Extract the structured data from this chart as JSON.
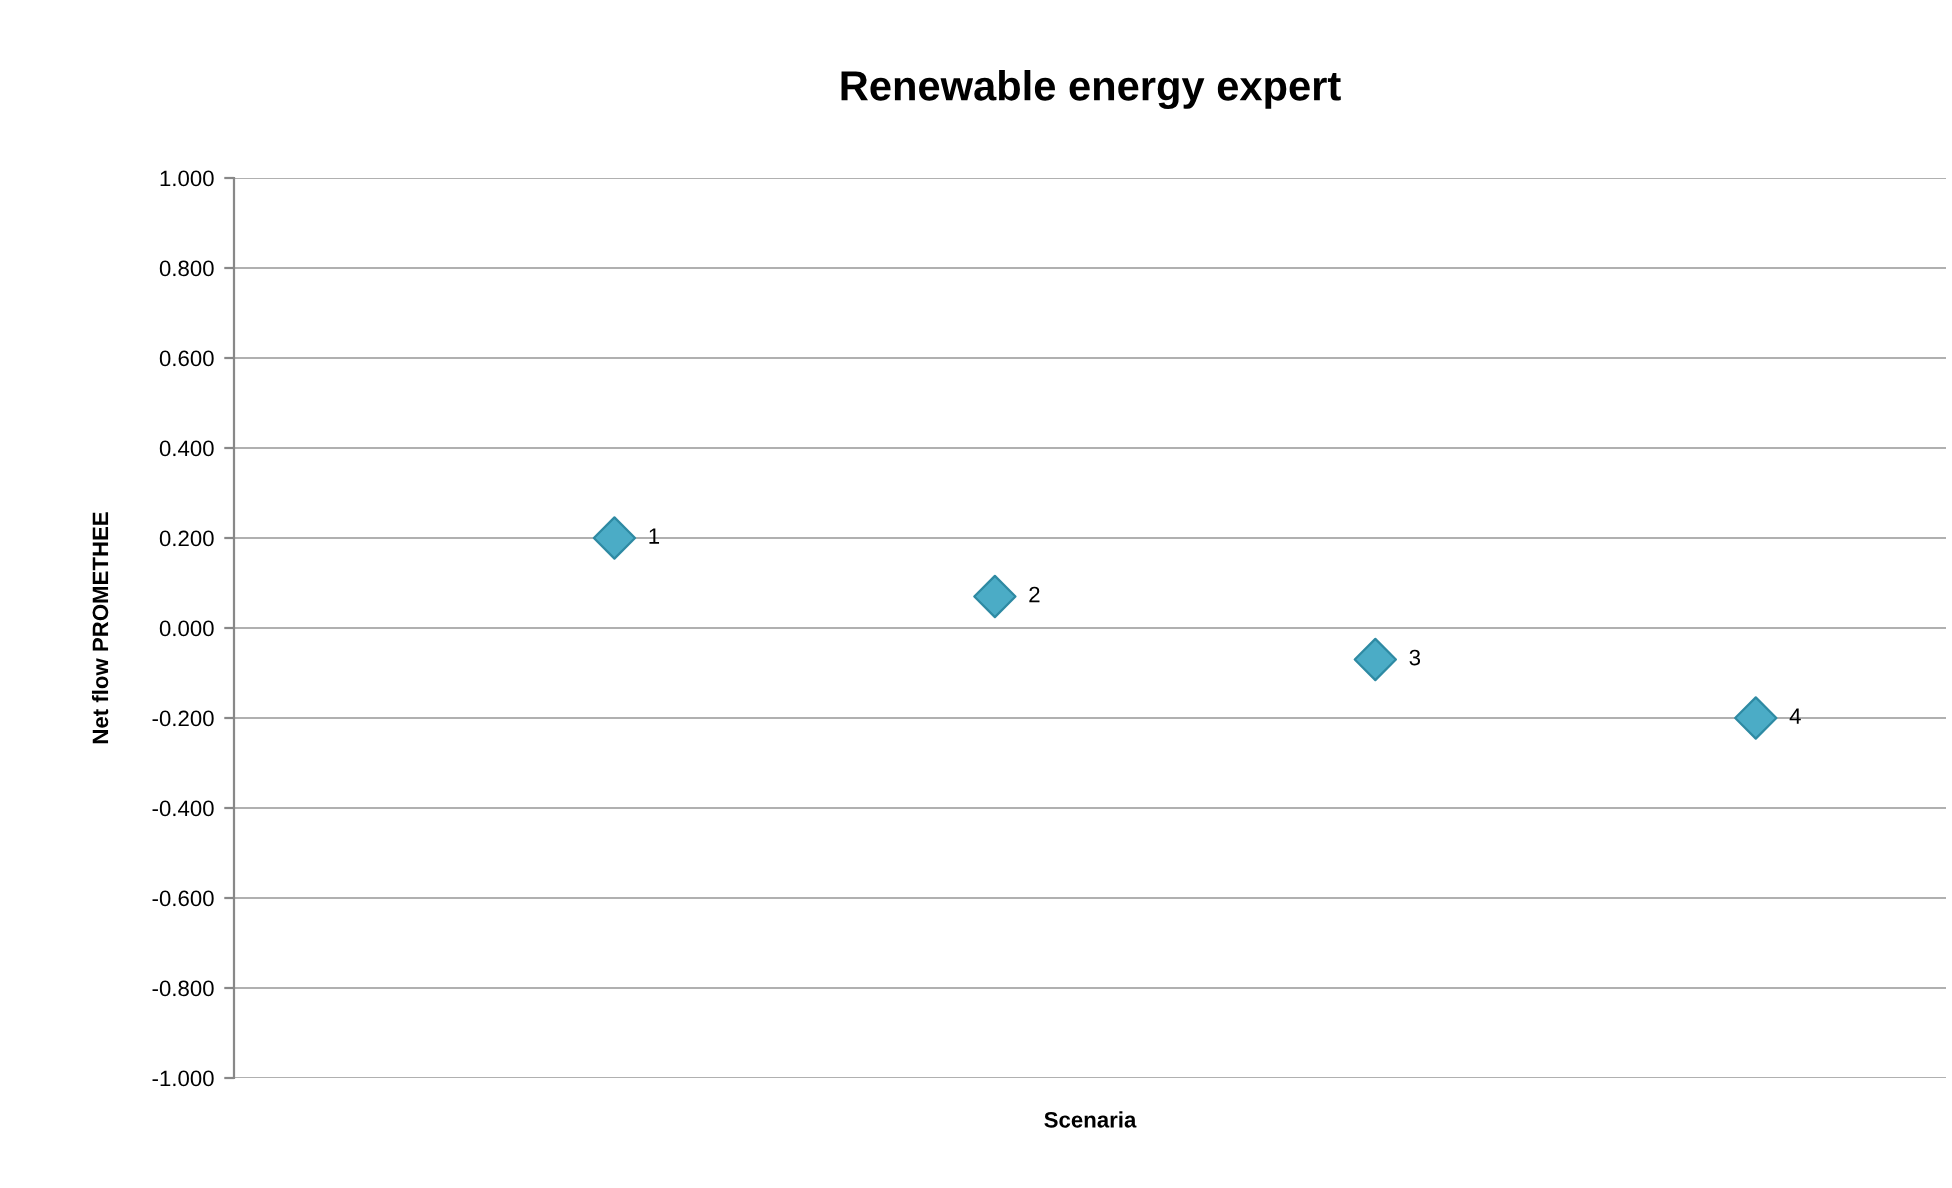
{
  "chart_data": {
    "type": "scatter",
    "title": "Renewable energy expert",
    "xlabel": "Scenaria",
    "ylabel": "Net flow PROMETHEE",
    "categories": [
      null,
      null,
      null,
      null
    ],
    "series": [
      {
        "color": "#4bacc6",
        "values": [
          0.2,
          0.07,
          -0.07,
          -0.2
        ]
      }
    ],
    "annotations": [
      "1",
      "2",
      "3",
      "4"
    ],
    "ylim": [
      -1.0,
      1.0
    ],
    "yticks": [
      {
        "value": -1.0,
        "label": "-1.000"
      },
      {
        "value": -0.8,
        "label": "-0.800"
      },
      {
        "value": -0.6,
        "label": "-0.600"
      },
      {
        "value": -0.4,
        "label": "-0.400"
      },
      {
        "value": -0.2,
        "label": "-0.200"
      },
      {
        "value": 0.0,
        "label": "0.000"
      },
      {
        "value": 0.2,
        "label": "0.200"
      },
      {
        "value": 0.4,
        "label": "0.400"
      },
      {
        "value": 0.6,
        "label": "0.600"
      },
      {
        "value": 0.8,
        "label": "0.800"
      },
      {
        "value": 1.0,
        "label": "1.000"
      }
    ],
    "tick_labels": "y",
    "grid": "y",
    "marker": "diamond"
  }
}
